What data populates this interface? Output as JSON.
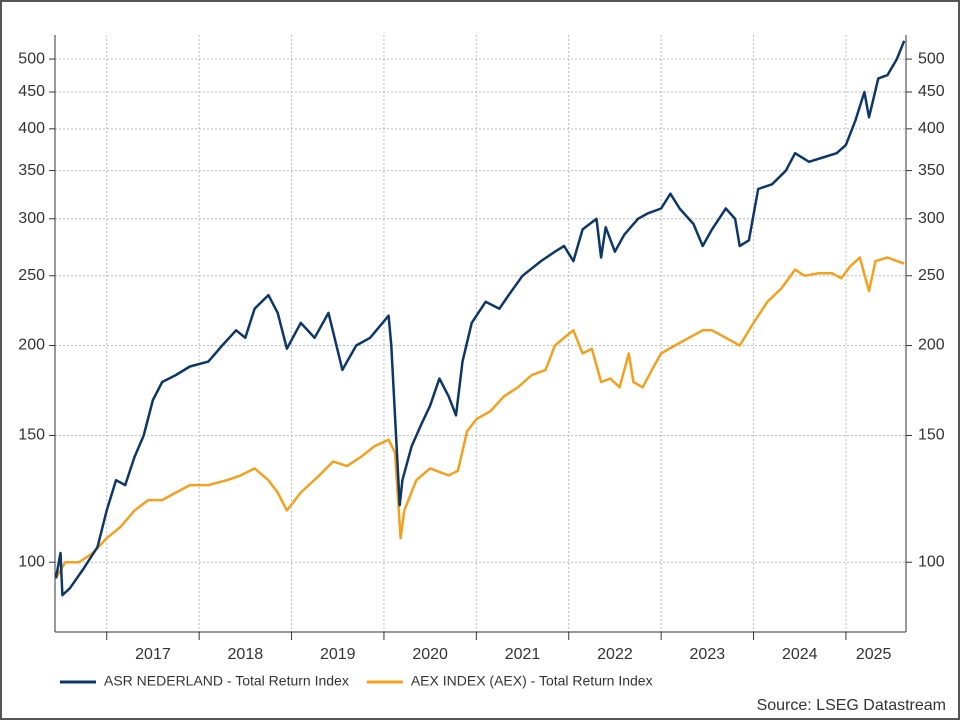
{
  "chart_data": {
    "type": "line",
    "log_y": true,
    "grid": true,
    "legend": "bottom",
    "source": "Source: LSEG Datastream",
    "xlim": [
      2016.44,
      2025.65
    ],
    "xgrid": [
      2017,
      2018,
      2019,
      2020,
      2021,
      2022,
      2023,
      2024,
      2025
    ],
    "xticks": [
      {
        "value": 2017.5,
        "label": "2017"
      },
      {
        "value": 2018.5,
        "label": "2018"
      },
      {
        "value": 2019.5,
        "label": "2019"
      },
      {
        "value": 2020.5,
        "label": "2020"
      },
      {
        "value": 2021.5,
        "label": "2021"
      },
      {
        "value": 2022.5,
        "label": "2022"
      },
      {
        "value": 2023.5,
        "label": "2023"
      },
      {
        "value": 2024.5,
        "label": "2024"
      },
      {
        "value": 2025.3,
        "label": "2025"
      }
    ],
    "ylim": [
      80,
      540
    ],
    "yticks": [
      100,
      150,
      200,
      250,
      300,
      350,
      400,
      450,
      500
    ],
    "series": [
      {
        "name": "ASR NEDERLAND - Total Return Index",
        "color": "#0d3768",
        "x": [
          2016.45,
          2016.5,
          2016.52,
          2016.6,
          2016.75,
          2016.9,
          2017.0,
          2017.1,
          2017.2,
          2017.3,
          2017.4,
          2017.5,
          2017.6,
          2017.75,
          2017.9,
          2018.1,
          2018.25,
          2018.4,
          2018.5,
          2018.6,
          2018.75,
          2018.85,
          2018.95,
          2019.1,
          2019.25,
          2019.4,
          2019.55,
          2019.7,
          2019.85,
          2020.05,
          2020.08,
          2020.17,
          2020.2,
          2020.3,
          2020.4,
          2020.5,
          2020.6,
          2020.7,
          2020.78,
          2020.85,
          2020.95,
          2021.1,
          2021.25,
          2021.35,
          2021.5,
          2021.7,
          2021.85,
          2021.95,
          2022.05,
          2022.15,
          2022.3,
          2022.35,
          2022.4,
          2022.5,
          2022.6,
          2022.75,
          2022.85,
          2023.0,
          2023.1,
          2023.2,
          2023.35,
          2023.45,
          2023.55,
          2023.7,
          2023.8,
          2023.85,
          2023.95,
          2024.05,
          2024.2,
          2024.35,
          2024.45,
          2024.6,
          2024.75,
          2024.9,
          2025.0,
          2025.1,
          2025.2,
          2025.25,
          2025.35,
          2025.45,
          2025.55,
          2025.63
        ],
        "values": [
          95,
          103,
          90,
          92,
          98,
          105,
          118,
          130,
          128,
          140,
          150,
          168,
          178,
          182,
          187,
          190,
          200,
          210,
          205,
          225,
          235,
          222,
          198,
          215,
          205,
          222,
          185,
          200,
          205,
          220,
          200,
          120,
          130,
          145,
          155,
          165,
          180,
          170,
          160,
          190,
          215,
          230,
          225,
          235,
          250,
          262,
          270,
          275,
          262,
          290,
          300,
          265,
          292,
          270,
          285,
          300,
          305,
          310,
          325,
          310,
          295,
          275,
          290,
          310,
          300,
          275,
          280,
          330,
          335,
          350,
          370,
          360,
          365,
          370,
          380,
          410,
          450,
          415,
          470,
          475,
          500,
          530
        ]
      },
      {
        "name": "AEX INDEX (AEX) - Total Return Index",
        "color": "#f2a01e",
        "x": [
          2016.45,
          2016.55,
          2016.7,
          2016.85,
          2017.0,
          2017.15,
          2017.3,
          2017.45,
          2017.6,
          2017.75,
          2017.9,
          2018.1,
          2018.3,
          2018.45,
          2018.6,
          2018.75,
          2018.85,
          2018.95,
          2019.1,
          2019.3,
          2019.45,
          2019.6,
          2019.75,
          2019.9,
          2020.05,
          2020.12,
          2020.18,
          2020.22,
          2020.35,
          2020.5,
          2020.7,
          2020.8,
          2020.9,
          2021.0,
          2021.15,
          2021.3,
          2021.45,
          2021.6,
          2021.75,
          2021.85,
          2021.95,
          2022.05,
          2022.15,
          2022.25,
          2022.35,
          2022.45,
          2022.55,
          2022.65,
          2022.7,
          2022.8,
          2022.9,
          2023.0,
          2023.15,
          2023.3,
          2023.45,
          2023.55,
          2023.7,
          2023.85,
          2024.0,
          2024.15,
          2024.3,
          2024.45,
          2024.55,
          2024.7,
          2024.85,
          2024.95,
          2025.05,
          2025.15,
          2025.25,
          2025.32,
          2025.45,
          2025.55,
          2025.63
        ],
        "values": [
          95,
          100,
          100,
          103,
          108,
          112,
          118,
          122,
          122,
          125,
          128,
          128,
          130,
          132,
          135,
          130,
          125,
          118,
          125,
          132,
          138,
          136,
          140,
          145,
          148,
          142,
          108,
          118,
          130,
          135,
          132,
          134,
          152,
          158,
          162,
          170,
          175,
          182,
          185,
          200,
          205,
          210,
          195,
          198,
          178,
          180,
          175,
          195,
          178,
          175,
          185,
          195,
          200,
          205,
          210,
          210,
          205,
          200,
          215,
          230,
          240,
          255,
          250,
          252,
          252,
          248,
          258,
          265,
          238,
          262,
          265,
          262,
          260
        ]
      }
    ]
  }
}
